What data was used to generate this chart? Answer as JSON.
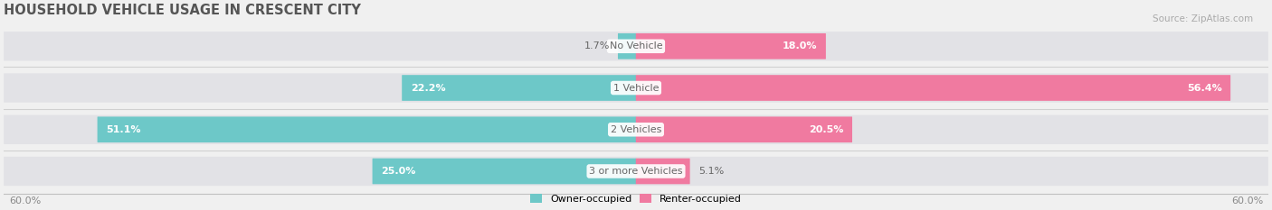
{
  "title": "HOUSEHOLD VEHICLE USAGE IN CRESCENT CITY",
  "source": "Source: ZipAtlas.com",
  "categories": [
    "No Vehicle",
    "1 Vehicle",
    "2 Vehicles",
    "3 or more Vehicles"
  ],
  "owner_values": [
    1.7,
    22.2,
    51.1,
    25.0
  ],
  "renter_values": [
    18.0,
    56.4,
    20.5,
    5.1
  ],
  "owner_color": "#6dc8c8",
  "renter_color": "#f07aa0",
  "axis_limit": 60.0,
  "background_color": "#f0f0f0",
  "bar_bg_color": "#e2e2e6",
  "legend_owner": "Owner-occupied",
  "legend_renter": "Renter-occupied",
  "axis_label": "60.0%",
  "title_fontsize": 10.5,
  "label_fontsize": 8.0,
  "category_fontsize": 8.0,
  "bar_height": 0.58,
  "source_fontsize": 7.5
}
